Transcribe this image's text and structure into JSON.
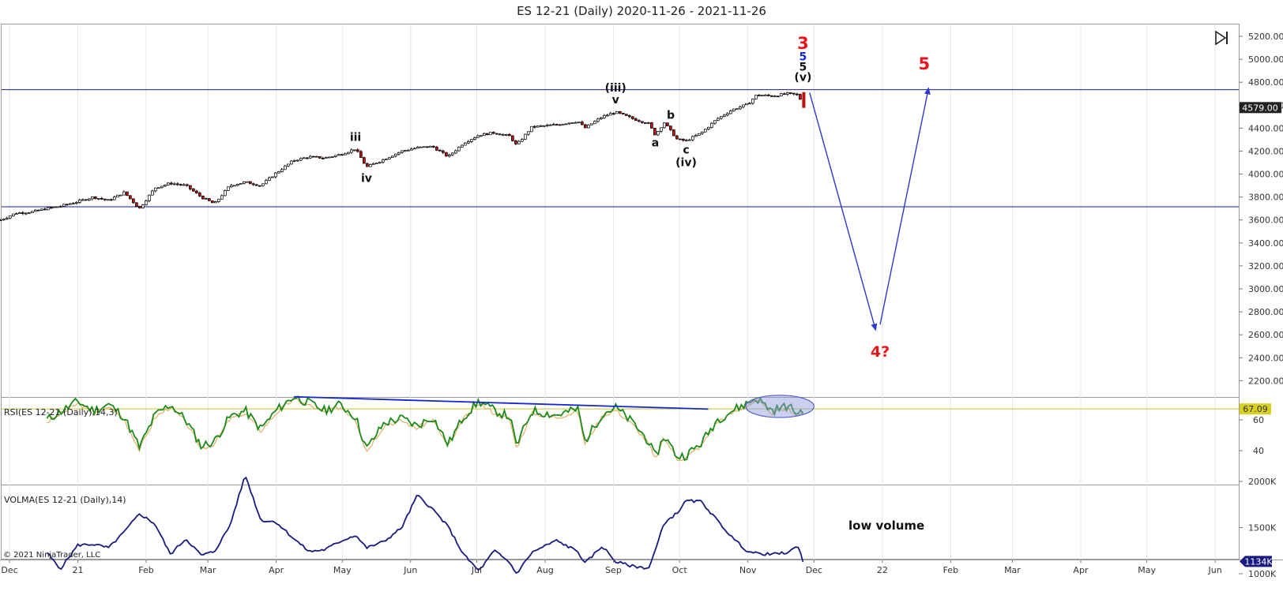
{
  "window": {
    "title": "ES 12-21 (Daily)  2020-11-26 - 2021-11-26",
    "copyright": "© 2021 NinjaTrader, LLC"
  },
  "icons": {
    "end_button": "skip-to-end-icon"
  },
  "colors": {
    "price_up": "#000000",
    "price_down": "#c01010",
    "hline": "#1a1aa0",
    "rsi_line": "#1a8a1a",
    "rsi_signal": "#e0b060",
    "rsi_ref": "#c8c830",
    "volma_line": "#1a1a80",
    "trendline": "#1428d0",
    "wave_red": "#e8141b",
    "wave_blue": "#1428d0",
    "projection_arrow": "#2a3ad0",
    "highlight_ellipse": "#8c96e0"
  },
  "chart_data": [
    {
      "type": "candlestick",
      "title": "ES 12-21 (Daily)  2020-11-26 - 2021-11-26",
      "x_tick_labels": [
        "Dec",
        "21",
        "Feb",
        "Mar",
        "Apr",
        "May",
        "Jun",
        "Jul",
        "Aug",
        "Sep",
        "Oct",
        "Nov",
        "Dec",
        "22",
        "Feb",
        "Mar",
        "Apr",
        "May",
        "Jun"
      ],
      "y_tick_labels": [
        "5200.00",
        "5000.00",
        "4800.00",
        "4600.00",
        "4400.00",
        "4200.00",
        "4000.00",
        "3800.00",
        "3600.00",
        "3400.00",
        "3200.00",
        "3000.00",
        "2800.00",
        "2600.00",
        "2400.00",
        "2200.00"
      ],
      "ylim": [
        2200,
        5300
      ],
      "current_price": 4579,
      "current_price_label": "4579.00",
      "horizontal_lines": [
        4735,
        3715
      ],
      "close_path": [
        [
          "2020-11-27",
          3600
        ],
        [
          "2020-12-04",
          3660
        ],
        [
          "2020-12-11",
          3670
        ],
        [
          "2020-12-18",
          3700
        ],
        [
          "2020-12-24",
          3720
        ],
        [
          "2021-01-01",
          3760
        ],
        [
          "2021-01-08",
          3800
        ],
        [
          "2021-01-15",
          3770
        ],
        [
          "2021-01-22",
          3840
        ],
        [
          "2021-01-29",
          3700
        ],
        [
          "2021-02-05",
          3880
        ],
        [
          "2021-02-12",
          3920
        ],
        [
          "2021-02-19",
          3900
        ],
        [
          "2021-02-26",
          3800
        ],
        [
          "2021-03-04",
          3740
        ],
        [
          "2021-03-11",
          3900
        ],
        [
          "2021-03-18",
          3930
        ],
        [
          "2021-03-25",
          3900
        ],
        [
          "2021-04-01",
          4010
        ],
        [
          "2021-04-09",
          4120
        ],
        [
          "2021-04-16",
          4150
        ],
        [
          "2021-04-23",
          4140
        ],
        [
          "2021-04-30",
          4170
        ],
        [
          "2021-05-07",
          4220
        ],
        [
          "2021-05-12",
          4060
        ],
        [
          "2021-05-20",
          4130
        ],
        [
          "2021-05-28",
          4200
        ],
        [
          "2021-06-04",
          4230
        ],
        [
          "2021-06-11",
          4240
        ],
        [
          "2021-06-18",
          4150
        ],
        [
          "2021-06-25",
          4270
        ],
        [
          "2021-07-02",
          4340
        ],
        [
          "2021-07-09",
          4360
        ],
        [
          "2021-07-16",
          4330
        ],
        [
          "2021-07-19",
          4250
        ],
        [
          "2021-07-26",
          4410
        ],
        [
          "2021-08-06",
          4430
        ],
        [
          "2021-08-16",
          4460
        ],
        [
          "2021-08-19",
          4400
        ],
        [
          "2021-08-27",
          4500
        ],
        [
          "2021-09-02",
          4540
        ],
        [
          "2021-09-10",
          4480
        ],
        [
          "2021-09-17",
          4440
        ],
        [
          "2021-09-20",
          4340
        ],
        [
          "2021-09-24",
          4450
        ],
        [
          "2021-09-30",
          4300
        ],
        [
          "2021-10-04",
          4290
        ],
        [
          "2021-10-11",
          4360
        ],
        [
          "2021-10-18",
          4480
        ],
        [
          "2021-10-25",
          4560
        ],
        [
          "2021-11-01",
          4610
        ],
        [
          "2021-11-05",
          4690
        ],
        [
          "2021-11-12",
          4680
        ],
        [
          "2021-11-19",
          4700
        ],
        [
          "2021-11-24",
          4690
        ],
        [
          "2021-11-26",
          4590
        ]
      ],
      "wave_labels": [
        {
          "text": "iii",
          "x": "2021-05-07",
          "y": 4290,
          "color": "black"
        },
        {
          "text": "iv",
          "x": "2021-05-12",
          "y": 3930,
          "color": "black"
        },
        {
          "text": "(iii)",
          "x": "2021-09-02",
          "y": 4720,
          "color": "black"
        },
        {
          "text": "v",
          "x": "2021-09-02",
          "y": 4615,
          "color": "black"
        },
        {
          "text": "a",
          "x": "2021-09-20",
          "y": 4240,
          "color": "black"
        },
        {
          "text": "b",
          "x": "2021-09-27",
          "y": 4480,
          "color": "black"
        },
        {
          "text": "c",
          "x": "2021-10-04",
          "y": 4180,
          "color": "black"
        },
        {
          "text": "(iv)",
          "x": "2021-10-04",
          "y": 4070,
          "color": "black"
        },
        {
          "text": "3",
          "x": "2021-11-26",
          "y": 5090,
          "color": "red"
        },
        {
          "text": "5",
          "x": "2021-11-26",
          "y": 4990,
          "color": "blue"
        },
        {
          "text": "5",
          "x": "2021-11-26",
          "y": 4900,
          "color": "black"
        },
        {
          "text": "(v)",
          "x": "2021-11-26",
          "y": 4810,
          "color": "black"
        },
        {
          "text": "5",
          "x": "2022-01-20",
          "y": 4910,
          "color": "red"
        },
        {
          "text": "4?",
          "x": "2021-12-31",
          "y": 2410,
          "color": "red"
        }
      ],
      "projection_arrows": [
        {
          "from": [
            "2021-11-29",
            4710
          ],
          "to": [
            "2021-12-29",
            2640
          ]
        },
        {
          "from": [
            "2021-12-31",
            2690
          ],
          "to": [
            "2022-01-22",
            4750
          ]
        }
      ]
    },
    {
      "type": "line",
      "name": "RSI(ES 12-21 (Daily),14,3)",
      "y_tick_labels": [
        "60",
        "40"
      ],
      "current_value": 67.09,
      "current_value_label": "67.09",
      "reference_line": 67.09,
      "rsi_path": [
        [
          "2020-12-18",
          60
        ],
        [
          "2021-01-01",
          72
        ],
        [
          "2021-01-08",
          66
        ],
        [
          "2021-01-15",
          70
        ],
        [
          "2021-01-22",
          62
        ],
        [
          "2021-01-29",
          42
        ],
        [
          "2021-02-05",
          63
        ],
        [
          "2021-02-12",
          70
        ],
        [
          "2021-02-19",
          60
        ],
        [
          "2021-02-26",
          43
        ],
        [
          "2021-03-04",
          46
        ],
        [
          "2021-03-11",
          62
        ],
        [
          "2021-03-18",
          66
        ],
        [
          "2021-03-25",
          54
        ],
        [
          "2021-04-01",
          66
        ],
        [
          "2021-04-09",
          75
        ],
        [
          "2021-04-16",
          71
        ],
        [
          "2021-04-23",
          66
        ],
        [
          "2021-04-30",
          70
        ],
        [
          "2021-05-07",
          62
        ],
        [
          "2021-05-12",
          41
        ],
        [
          "2021-05-20",
          58
        ],
        [
          "2021-05-28",
          61
        ],
        [
          "2021-06-04",
          56
        ],
        [
          "2021-06-11",
          62
        ],
        [
          "2021-06-18",
          44
        ],
        [
          "2021-06-25",
          62
        ],
        [
          "2021-07-02",
          72
        ],
        [
          "2021-07-09",
          66
        ],
        [
          "2021-07-16",
          62
        ],
        [
          "2021-07-19",
          43
        ],
        [
          "2021-07-26",
          66
        ],
        [
          "2021-08-06",
          63
        ],
        [
          "2021-08-16",
          67
        ],
        [
          "2021-08-19",
          46
        ],
        [
          "2021-08-27",
          64
        ],
        [
          "2021-09-02",
          68
        ],
        [
          "2021-09-10",
          58
        ],
        [
          "2021-09-17",
          46
        ],
        [
          "2021-09-20",
          35
        ],
        [
          "2021-09-24",
          50
        ],
        [
          "2021-09-30",
          36
        ],
        [
          "2021-10-04",
          37
        ],
        [
          "2021-10-11",
          45
        ],
        [
          "2021-10-18",
          60
        ],
        [
          "2021-10-25",
          66
        ],
        [
          "2021-11-01",
          71
        ],
        [
          "2021-11-05",
          74
        ],
        [
          "2021-11-12",
          66
        ],
        [
          "2021-11-19",
          69
        ],
        [
          "2021-11-24",
          64
        ],
        [
          "2021-11-26",
          67
        ]
      ],
      "trendline": {
        "from": [
          "2021-04-09",
          75
        ],
        "to": [
          "2021-10-14",
          67
        ]
      },
      "highlight_ellipse": {
        "x_range": [
          "2021-10-31",
          "2021-12-01"
        ],
        "y_range": [
          61.5,
          76
        ]
      }
    },
    {
      "type": "line",
      "name": "VOLMA(ES 12-21 (Daily),14)",
      "y_tick_labels": [
        "2000K",
        "1500K",
        "1000K"
      ],
      "current_value": 1134,
      "current_value_label": "1134K",
      "annotation": "low volume",
      "volma_path": [
        [
          "2020-12-18",
          1230
        ],
        [
          "2020-12-24",
          1050
        ],
        [
          "2021-01-01",
          1310
        ],
        [
          "2021-01-08",
          1320
        ],
        [
          "2021-01-15",
          1280
        ],
        [
          "2021-01-22",
          1450
        ],
        [
          "2021-01-29",
          1650
        ],
        [
          "2021-02-05",
          1540
        ],
        [
          "2021-02-12",
          1210
        ],
        [
          "2021-02-19",
          1380
        ],
        [
          "2021-02-26",
          1200
        ],
        [
          "2021-03-04",
          1240
        ],
        [
          "2021-03-11",
          1520
        ],
        [
          "2021-03-18",
          2070
        ],
        [
          "2021-03-25",
          1580
        ],
        [
          "2021-04-01",
          1560
        ],
        [
          "2021-04-09",
          1380
        ],
        [
          "2021-04-16",
          1240
        ],
        [
          "2021-04-23",
          1260
        ],
        [
          "2021-04-30",
          1350
        ],
        [
          "2021-05-07",
          1420
        ],
        [
          "2021-05-12",
          1280
        ],
        [
          "2021-05-20",
          1350
        ],
        [
          "2021-05-28",
          1500
        ],
        [
          "2021-06-04",
          1850
        ],
        [
          "2021-06-11",
          1700
        ],
        [
          "2021-06-18",
          1510
        ],
        [
          "2021-06-25",
          1210
        ],
        [
          "2021-07-02",
          1030
        ],
        [
          "2021-07-09",
          1250
        ],
        [
          "2021-07-16",
          1120
        ],
        [
          "2021-07-19",
          1000
        ],
        [
          "2021-07-26",
          1230
        ],
        [
          "2021-08-06",
          1360
        ],
        [
          "2021-08-16",
          1240
        ],
        [
          "2021-08-19",
          1110
        ],
        [
          "2021-08-27",
          1300
        ],
        [
          "2021-09-02",
          1130
        ],
        [
          "2021-09-10",
          1080
        ],
        [
          "2021-09-17",
          1060
        ],
        [
          "2021-09-20",
          1250
        ],
        [
          "2021-09-24",
          1550
        ],
        [
          "2021-09-30",
          1660
        ],
        [
          "2021-10-04",
          1790
        ],
        [
          "2021-10-11",
          1780
        ],
        [
          "2021-10-18",
          1580
        ],
        [
          "2021-10-25",
          1390
        ],
        [
          "2021-11-01",
          1240
        ],
        [
          "2021-11-05",
          1220
        ],
        [
          "2021-11-12",
          1210
        ],
        [
          "2021-11-19",
          1230
        ],
        [
          "2021-11-24",
          1300
        ],
        [
          "2021-11-26",
          1134
        ]
      ]
    }
  ]
}
